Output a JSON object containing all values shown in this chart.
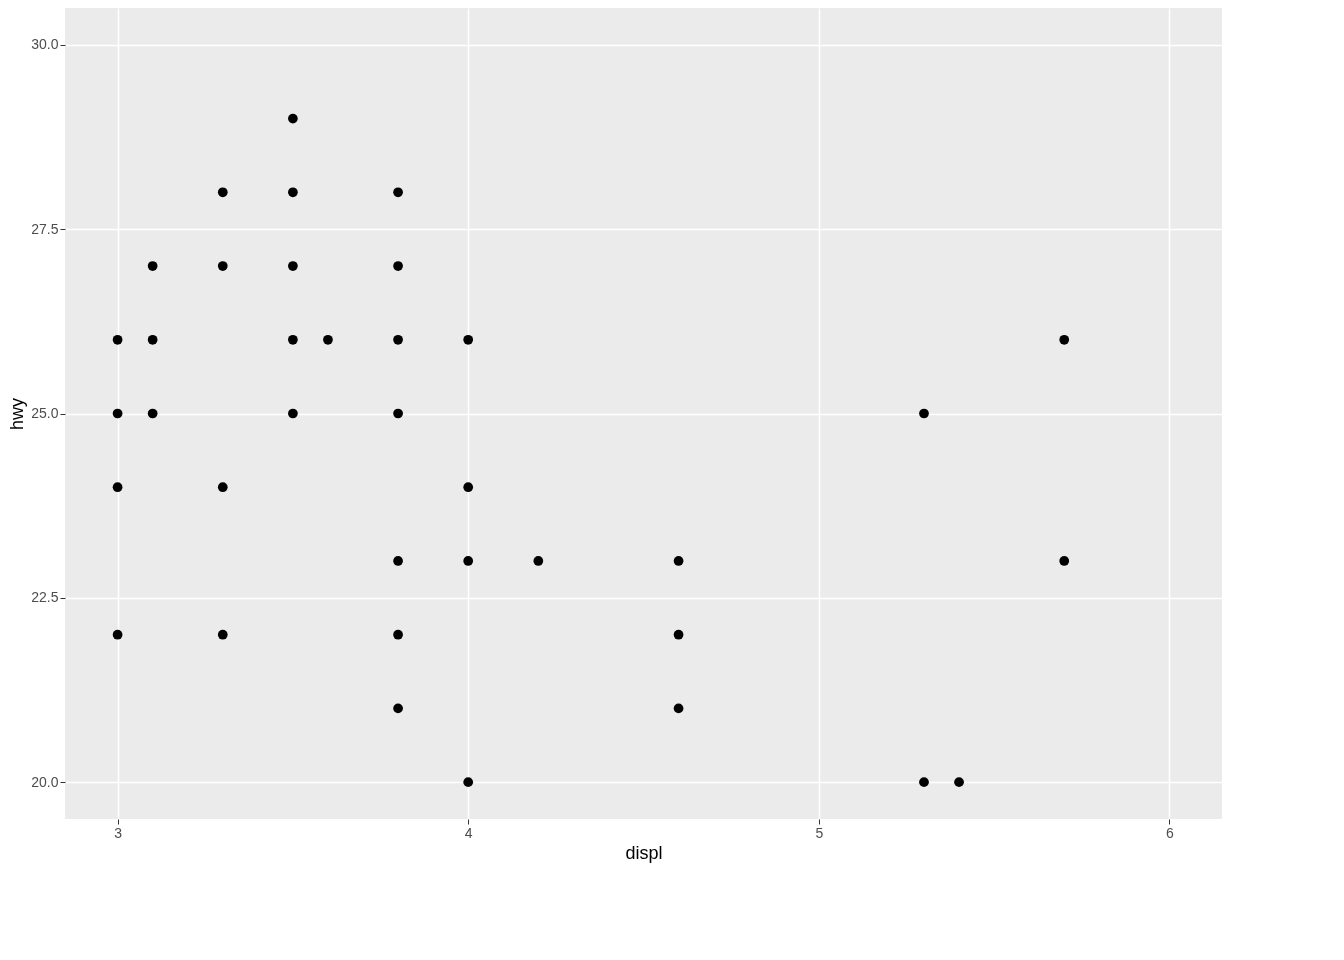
{
  "chart_data": {
    "type": "scatter",
    "xlabel": "displ",
    "ylabel": "hwy",
    "x": [
      3.0,
      3.0,
      3.0,
      3.0,
      3.1,
      3.1,
      3.1,
      3.3,
      3.3,
      3.3,
      3.3,
      3.5,
      3.5,
      3.5,
      3.5,
      3.5,
      3.6,
      3.8,
      3.8,
      3.8,
      3.8,
      3.8,
      3.8,
      3.8,
      4.0,
      4.0,
      4.0,
      4.0,
      4.2,
      4.6,
      4.6,
      4.6,
      5.3,
      5.3,
      5.4,
      5.7,
      5.7
    ],
    "series": [
      {
        "color": "#000000",
        "values": [
          26,
          25,
          24,
          22,
          27,
          26,
          25,
          28,
          27,
          24,
          22,
          29,
          28,
          27,
          26,
          25,
          26,
          28,
          27,
          26,
          25,
          23,
          22,
          21,
          26,
          24,
          23,
          20,
          23,
          23,
          22,
          21,
          25,
          20,
          20,
          26,
          23
        ]
      }
    ],
    "xlim": [
      2.85,
      6.15
    ],
    "ylim": [
      19.5,
      30.5
    ],
    "xticks": [
      3,
      4,
      5,
      6
    ],
    "yticks": [
      {
        "value": 20,
        "label": "20.0"
      },
      {
        "value": 22.5,
        "label": "22.5"
      },
      {
        "value": 25,
        "label": "25.0"
      },
      {
        "value": 27.5,
        "label": "27.5"
      },
      {
        "value": 30,
        "label": "30.0"
      }
    ],
    "grid": true,
    "marker": "circle"
  }
}
